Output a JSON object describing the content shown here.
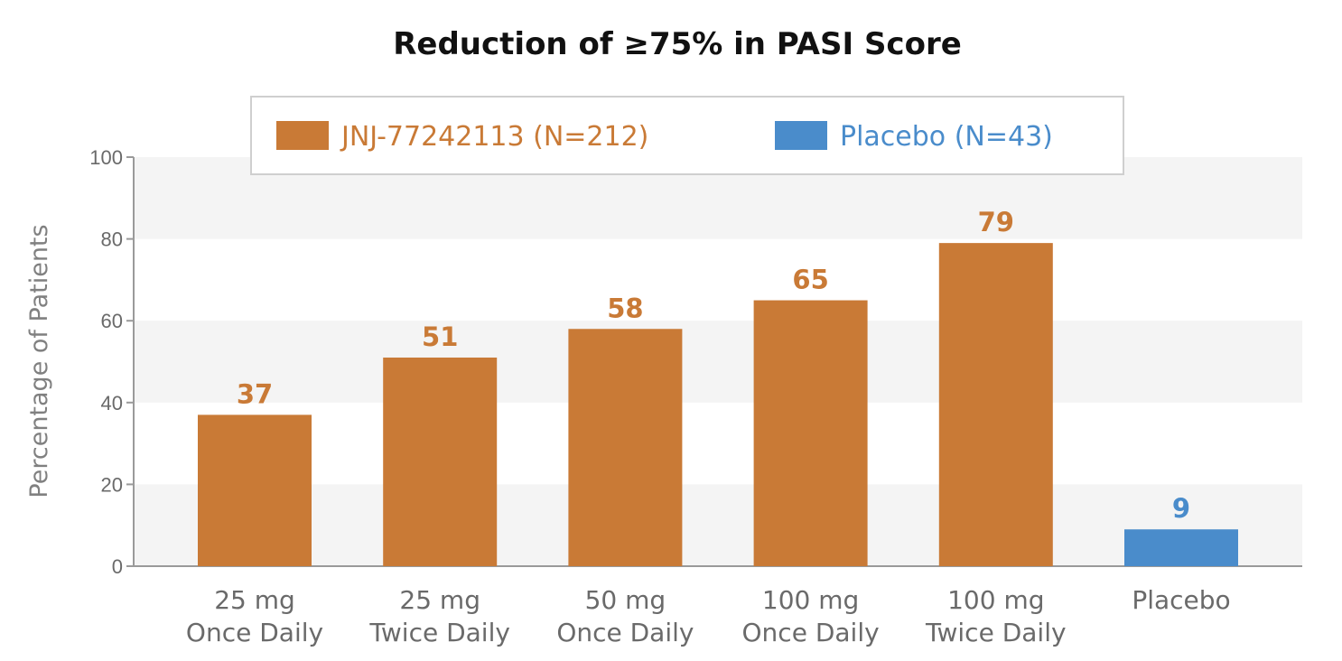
{
  "chart_data": {
    "type": "bar",
    "title": "Reduction of ≥75% in PASI Score",
    "ylabel": "Percentage of Patients",
    "xlabel": "",
    "ylim": [
      0,
      100
    ],
    "yticks": [
      0,
      20,
      40,
      60,
      80,
      100
    ],
    "grid": "alternating horizontal bands",
    "legend_position": "top",
    "categories": [
      [
        "25 mg",
        "Once Daily"
      ],
      [
        "25 mg",
        "Twice Daily"
      ],
      [
        "50 mg",
        "Once Daily"
      ],
      [
        "100 mg",
        "Once Daily"
      ],
      [
        "100 mg",
        "Twice Daily"
      ],
      [
        "Placebo"
      ]
    ],
    "values": [
      37,
      51,
      58,
      65,
      79,
      9
    ],
    "value_labels": [
      "37",
      "51",
      "58",
      "65",
      "79",
      "9"
    ],
    "bar_series": [
      0,
      0,
      0,
      0,
      0,
      1
    ],
    "series": [
      {
        "name": "JNJ-77242113 (N=212)",
        "color": "#c97a36"
      },
      {
        "name": "Placebo (N=43)",
        "color": "#4a8ccb"
      }
    ],
    "colors": {
      "band": "#f4f4f4",
      "axis": "#9a9a9a"
    }
  }
}
